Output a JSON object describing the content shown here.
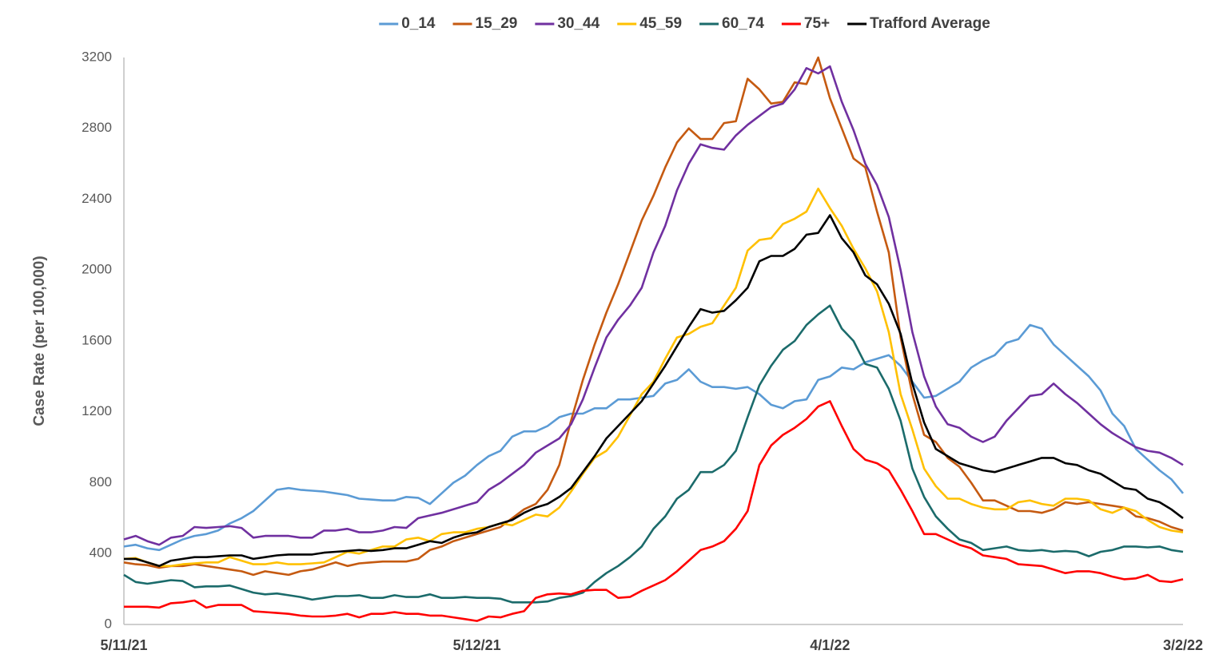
{
  "chart_data": {
    "type": "line",
    "y_label": "Case Rate (per 100,000)",
    "ylim": [
      0,
      3200
    ],
    "yticks": [
      0,
      400,
      800,
      1200,
      1600,
      2000,
      2400,
      2800,
      3200
    ],
    "grid": false,
    "categories": [
      "5/11/21",
      null,
      null,
      null,
      null,
      null,
      null,
      null,
      null,
      null,
      null,
      null,
      null,
      null,
      null,
      null,
      null,
      null,
      null,
      null,
      null,
      null,
      null,
      null,
      null,
      null,
      null,
      null,
      null,
      null,
      "5/12/21",
      null,
      null,
      null,
      null,
      null,
      null,
      null,
      null,
      null,
      null,
      null,
      null,
      null,
      null,
      null,
      null,
      null,
      null,
      null,
      null,
      null,
      null,
      null,
      null,
      null,
      null,
      null,
      null,
      null,
      "4/1/22",
      null,
      null,
      null,
      null,
      null,
      null,
      null,
      null,
      null,
      null,
      null,
      null,
      null,
      null,
      null,
      null,
      null,
      null,
      null,
      null,
      null,
      null,
      null,
      null,
      null,
      null,
      null,
      null,
      null,
      "3/2/22"
    ],
    "series": [
      {
        "name": "0_14",
        "color": "#5b9bd5",
        "values": [
          440,
          450,
          430,
          420,
          450,
          480,
          500,
          510,
          530,
          570,
          600,
          640,
          700,
          760,
          770,
          760,
          755,
          750,
          740,
          730,
          710,
          705,
          700,
          700,
          720,
          715,
          680,
          740,
          800,
          840,
          900,
          950,
          980,
          1060,
          1090,
          1090,
          1120,
          1170,
          1190,
          1190,
          1220,
          1220,
          1270,
          1270,
          1280,
          1290,
          1360,
          1380,
          1440,
          1370,
          1340,
          1340,
          1330,
          1340,
          1300,
          1240,
          1220,
          1260,
          1270,
          1380,
          1400,
          1450,
          1440,
          1480,
          1500,
          1520,
          1460,
          1370,
          1280,
          1290,
          1330,
          1370,
          1450,
          1490,
          1520,
          1590,
          1610,
          1690,
          1670,
          1580,
          1520,
          1460,
          1400,
          1320,
          1190,
          1120,
          990,
          930,
          870,
          820,
          740
        ]
      },
      {
        "name": "15_29",
        "color": "#c55a11",
        "values": [
          350,
          340,
          335,
          320,
          330,
          330,
          340,
          330,
          320,
          310,
          300,
          280,
          300,
          290,
          280,
          300,
          310,
          330,
          350,
          330,
          345,
          350,
          355,
          355,
          355,
          370,
          420,
          440,
          470,
          490,
          510,
          530,
          550,
          600,
          650,
          680,
          760,
          900,
          1150,
          1380,
          1580,
          1760,
          1920,
          2100,
          2280,
          2420,
          2580,
          2720,
          2800,
          2740,
          2740,
          2830,
          2840,
          3080,
          3020,
          2940,
          2950,
          3060,
          3050,
          3200,
          2970,
          2800,
          2630,
          2580,
          2330,
          2100,
          1620,
          1300,
          1070,
          1030,
          940,
          890,
          800,
          700,
          700,
          670,
          640,
          640,
          630,
          650,
          690,
          680,
          690,
          680,
          670,
          660,
          610,
          600,
          580,
          550,
          530
        ]
      },
      {
        "name": "30_44",
        "color": "#7030a0",
        "values": [
          480,
          500,
          470,
          450,
          490,
          500,
          550,
          545,
          550,
          555,
          545,
          490,
          500,
          500,
          500,
          490,
          490,
          530,
          530,
          540,
          520,
          520,
          530,
          550,
          545,
          600,
          615,
          630,
          650,
          670,
          690,
          760,
          800,
          850,
          900,
          970,
          1010,
          1050,
          1130,
          1270,
          1450,
          1620,
          1720,
          1800,
          1900,
          2100,
          2250,
          2450,
          2600,
          2710,
          2690,
          2680,
          2760,
          2820,
          2870,
          2920,
          2940,
          3020,
          3140,
          3110,
          3150,
          2950,
          2790,
          2600,
          2480,
          2300,
          2000,
          1650,
          1400,
          1230,
          1130,
          1110,
          1060,
          1030,
          1060,
          1150,
          1220,
          1290,
          1300,
          1360,
          1300,
          1250,
          1190,
          1130,
          1080,
          1040,
          1000,
          980,
          970,
          940,
          900
        ]
      },
      {
        "name": "45_59",
        "color": "#ffc000",
        "values": [
          370,
          375,
          350,
          330,
          330,
          340,
          345,
          350,
          350,
          380,
          360,
          340,
          340,
          350,
          340,
          340,
          345,
          350,
          380,
          410,
          400,
          420,
          440,
          440,
          480,
          490,
          470,
          510,
          520,
          520,
          540,
          550,
          570,
          560,
          590,
          620,
          610,
          660,
          750,
          850,
          940,
          980,
          1060,
          1180,
          1300,
          1370,
          1500,
          1620,
          1640,
          1680,
          1700,
          1800,
          1900,
          2110,
          2170,
          2180,
          2260,
          2290,
          2330,
          2460,
          2350,
          2250,
          2120,
          2010,
          1880,
          1650,
          1300,
          1100,
          880,
          780,
          710,
          710,
          680,
          660,
          650,
          650,
          690,
          700,
          680,
          670,
          710,
          710,
          700,
          650,
          630,
          660,
          640,
          590,
          550,
          530,
          520
        ]
      },
      {
        "name": "60_74",
        "color": "#1b6b6b",
        "values": [
          280,
          240,
          230,
          240,
          250,
          245,
          210,
          215,
          215,
          220,
          200,
          180,
          170,
          175,
          165,
          155,
          140,
          150,
          160,
          160,
          165,
          150,
          150,
          165,
          155,
          155,
          170,
          150,
          150,
          155,
          150,
          150,
          145,
          125,
          125,
          125,
          130,
          150,
          160,
          180,
          240,
          290,
          330,
          380,
          440,
          540,
          610,
          710,
          760,
          860,
          860,
          900,
          980,
          1170,
          1350,
          1460,
          1550,
          1600,
          1690,
          1750,
          1800,
          1670,
          1600,
          1470,
          1450,
          1330,
          1150,
          880,
          720,
          610,
          540,
          480,
          460,
          420,
          430,
          440,
          420,
          415,
          420,
          410,
          415,
          410,
          385,
          410,
          420,
          440,
          440,
          435,
          440,
          420,
          410
        ]
      },
      {
        "name": "75+",
        "color": "#ff0000",
        "values": [
          100,
          100,
          100,
          95,
          120,
          125,
          135,
          95,
          110,
          110,
          110,
          75,
          70,
          65,
          60,
          50,
          45,
          45,
          50,
          60,
          40,
          60,
          60,
          70,
          60,
          60,
          50,
          50,
          40,
          30,
          20,
          45,
          40,
          60,
          75,
          150,
          170,
          175,
          170,
          190,
          195,
          195,
          150,
          155,
          190,
          220,
          250,
          300,
          360,
          420,
          440,
          470,
          540,
          640,
          900,
          1010,
          1070,
          1110,
          1160,
          1230,
          1260,
          1120,
          990,
          930,
          910,
          870,
          760,
          640,
          510,
          510,
          480,
          450,
          430,
          390,
          380,
          370,
          340,
          335,
          330,
          310,
          290,
          300,
          300,
          290,
          270,
          255,
          260,
          280,
          245,
          240,
          255
        ]
      },
      {
        "name": "Trafford Average",
        "color": "#000000",
        "values": [
          370,
          370,
          350,
          330,
          360,
          370,
          380,
          380,
          385,
          390,
          390,
          370,
          380,
          390,
          395,
          395,
          395,
          405,
          410,
          415,
          420,
          415,
          420,
          430,
          430,
          450,
          470,
          460,
          490,
          510,
          520,
          550,
          570,
          590,
          630,
          660,
          680,
          720,
          770,
          860,
          950,
          1050,
          1120,
          1190,
          1260,
          1360,
          1460,
          1570,
          1680,
          1780,
          1760,
          1770,
          1830,
          1900,
          2050,
          2080,
          2080,
          2120,
          2200,
          2210,
          2310,
          2180,
          2100,
          1970,
          1920,
          1810,
          1640,
          1360,
          1140,
          990,
          950,
          910,
          890,
          870,
          860,
          880,
          900,
          920,
          940,
          940,
          910,
          900,
          870,
          850,
          810,
          770,
          760,
          710,
          690,
          650,
          600
        ]
      }
    ]
  }
}
